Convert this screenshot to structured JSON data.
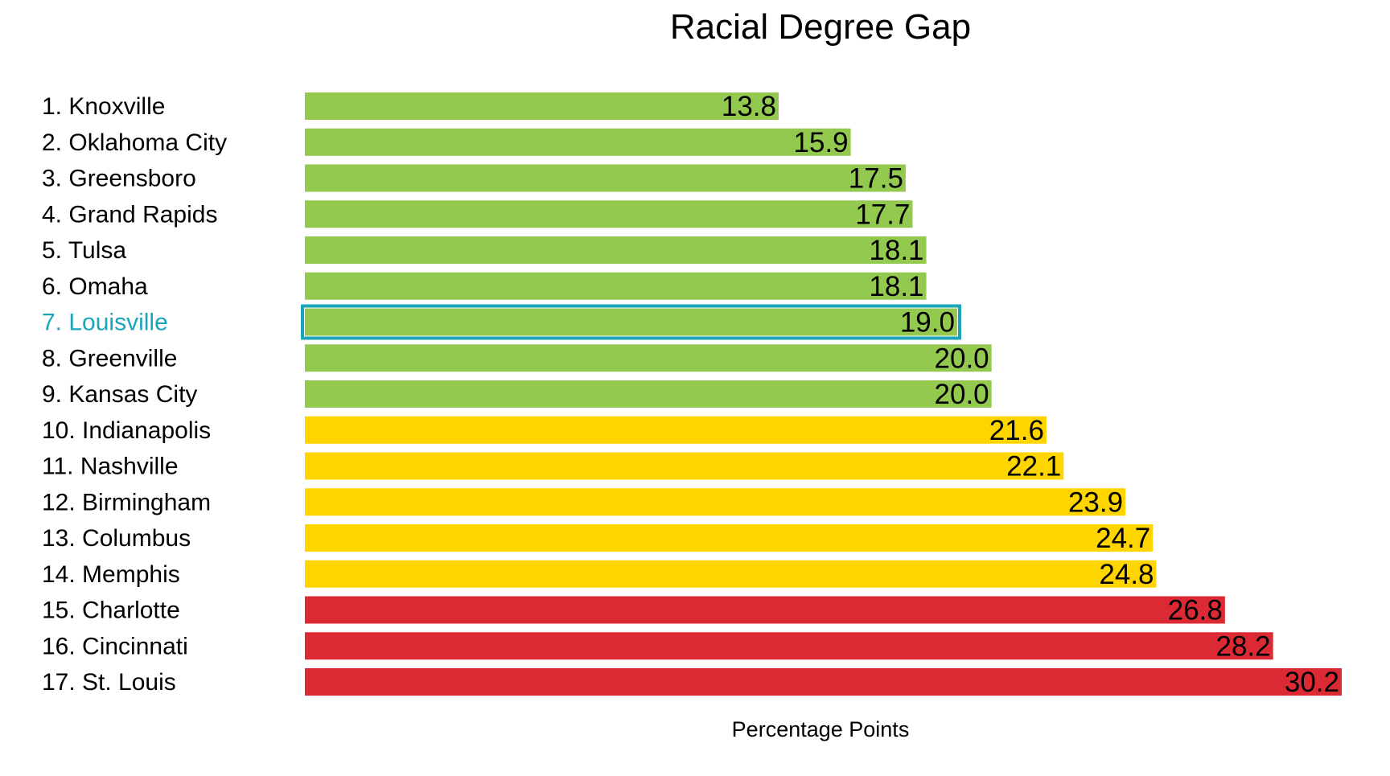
{
  "chart_data": {
    "type": "bar",
    "orientation": "horizontal",
    "title": "Racial Degree Gap",
    "xlabel": "Percentage Points",
    "ylabel": "",
    "xlim": [
      0,
      30.2
    ],
    "grid": false,
    "legend": "none",
    "categories": [
      "1. Knoxville",
      "2. Oklahoma City",
      "3. Greensboro",
      "4. Grand Rapids",
      "5. Tulsa",
      "6. Omaha",
      "7. Louisville",
      "8. Greenville",
      "9. Kansas City",
      "10. Indianapolis",
      "11. Nashville",
      "12. Birmingham",
      "13. Columbus",
      "14. Memphis",
      "15. Charlotte",
      "16. Cincinnati",
      "17. St. Louis"
    ],
    "values": [
      13.8,
      15.9,
      17.5,
      17.7,
      18.1,
      18.1,
      19.0,
      20.0,
      20.0,
      21.6,
      22.1,
      23.9,
      24.7,
      24.8,
      26.8,
      28.2,
      30.2
    ],
    "value_labels": [
      "13.8",
      "15.9",
      "17.5",
      "17.7",
      "18.1",
      "18.1",
      "19.0",
      "20.0",
      "20.0",
      "21.6",
      "22.1",
      "23.9",
      "24.7",
      "24.8",
      "26.8",
      "28.2",
      "30.2"
    ],
    "bar_colors": [
      "#92c94e",
      "#92c94e",
      "#92c94e",
      "#92c94e",
      "#92c94e",
      "#92c94e",
      "#92c94e",
      "#92c94e",
      "#92c94e",
      "#ffd500",
      "#ffd500",
      "#ffd500",
      "#ffd500",
      "#ffd500",
      "#dc2a35",
      "#dc2a35",
      "#dc2a35"
    ],
    "highlight_index": 6,
    "highlight_color": "#1aa5b8",
    "label_color": "#000000"
  }
}
